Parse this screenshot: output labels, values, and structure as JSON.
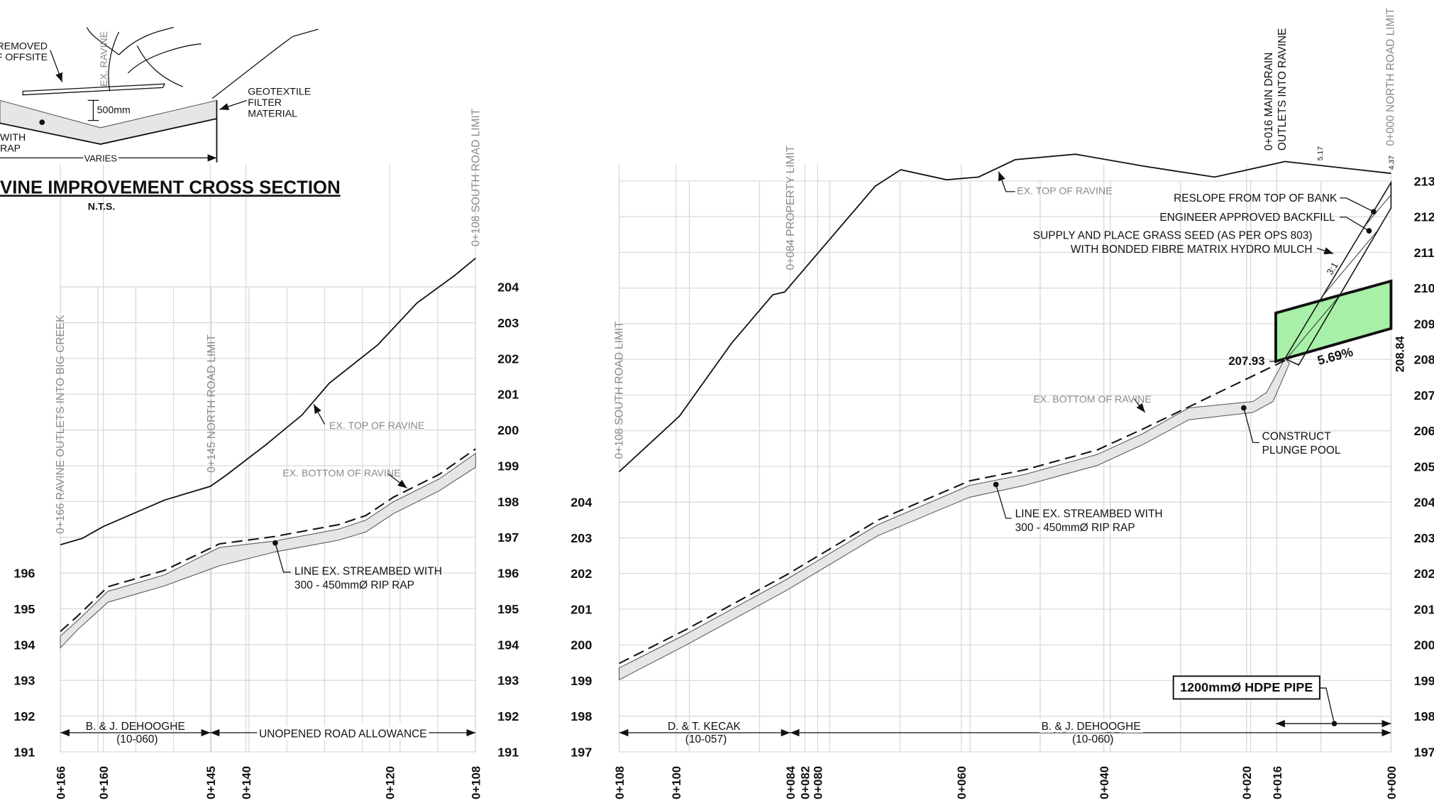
{
  "detail": {
    "note_1": "E REMOVED",
    "note_2": "OF OFFSITE",
    "ravine_label": "EX. RAVINE",
    "depth": "500mm",
    "geotextile": [
      "GEOTEXTILE",
      "FILTER",
      "MATERIAL"
    ],
    "riprap": [
      "WITH",
      "RAP"
    ],
    "width": "VARIES",
    "title": "VINE IMPROVEMENT CROSS SECTION",
    "scale": "N.T.S."
  },
  "left_profile": {
    "elevations_left": [
      196,
      195,
      194,
      193,
      192,
      191
    ],
    "elevations_right": [
      204,
      203,
      202,
      201,
      200,
      199,
      198,
      197,
      196,
      195,
      194,
      193,
      192,
      191
    ],
    "stations": [
      "0+166",
      "0+160",
      "0+145",
      "0+140",
      "0+120",
      "0+108"
    ],
    "station_notes": [
      "0+166 RAVINE OUTLETS INTO BIG CREEK",
      "0+145 NORTH ROAD LIMIT",
      "0+108 SOUTH ROAD LIMIT"
    ],
    "top_label": "EX. TOP OF RAVINE",
    "bottom_label": "EX. BOTTOM OF RAVINE",
    "streambed_note": [
      "LINE EX. STREAMBED WITH",
      "300 - 450mmØ RIP RAP"
    ],
    "owner": {
      "name": "B. & J. DEHOOGHE",
      "roll": "(10-060)"
    },
    "allowance": "UNOPENED ROAD ALLOWANCE"
  },
  "right_profile": {
    "elevations_left": [
      204,
      203,
      202,
      201,
      200,
      199,
      198,
      197
    ],
    "elevations_right": [
      213,
      212,
      211,
      210,
      209,
      208,
      207,
      206,
      205,
      204,
      203,
      202,
      201,
      200,
      199,
      198,
      197
    ],
    "stations": [
      "0+108",
      "0+100",
      "0+084",
      "0+082",
      "0+080",
      "0+060",
      "0+040",
      "0+020",
      "0+016",
      "0+000"
    ],
    "station_notes": [
      "0+108 SOUTH ROAD LIMIT",
      "0+084 PROPERTY LIMIT",
      "0+016 MAIN DRAIN",
      "OUTLETS INTO RAVINE",
      "0+000 NORTH ROAD LIMIT"
    ],
    "offsets": [
      "5.17",
      "4.37"
    ],
    "top_label": "EX. TOP OF RAVINE",
    "notes": [
      "RESLOPE FROM TOP OF BANK",
      "ENGINEER APPROVED BACKFILL",
      "SUPPLY AND PLACE GRASS SEED (AS PER OPS 803)",
      "WITH BONDED FIBRE MATRIX HYDRO MULCH"
    ],
    "slope_ratio": "3:1",
    "invert_in": "207.93",
    "pipe_slope": "5.69%",
    "invert_out": "208.84",
    "bottom_label": "EX. BOTTOM OF RAVINE",
    "plunge_pool": [
      "CONSTRUCT",
      "PLUNGE POOL"
    ],
    "streambed_note": [
      "LINE EX. STREAMBED WITH",
      "300 - 450mmØ RIP RAP"
    ],
    "pipe": "1200mmØ HDPE PIPE",
    "owners": [
      {
        "name": "D. & T. KECAK",
        "roll": "(10-057)"
      },
      {
        "name": "B. & J. DEHOOGHE",
        "roll": "(10-060)"
      }
    ]
  }
}
